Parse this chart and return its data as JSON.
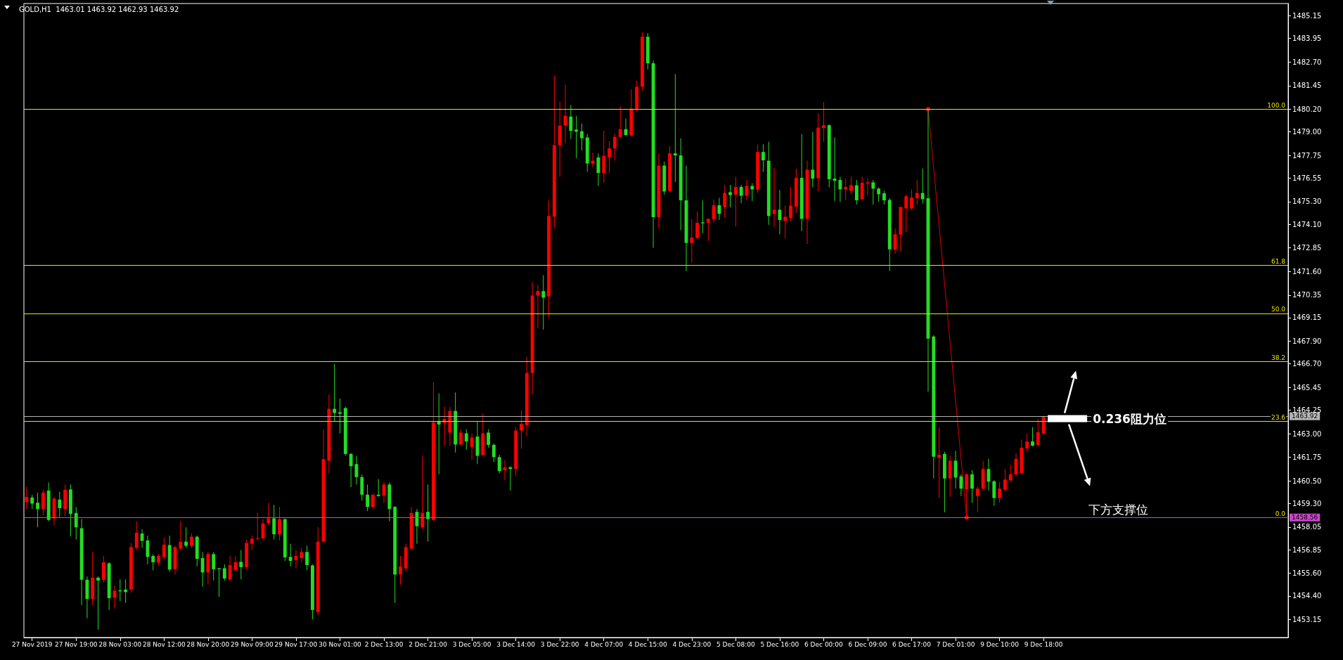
{
  "chart_data": {
    "type": "candlestick",
    "title": "GOLD,H1  1463.01 1463.92 1462.93 1463.92",
    "categories": [
      null,
      "27 Nov 2019",
      null,
      null,
      null,
      null,
      null,
      null,
      null,
      "27 Nov 19:00",
      null,
      null,
      null,
      null,
      null,
      null,
      null,
      "28 Nov 03:00",
      null,
      null,
      null,
      null,
      null,
      null,
      null,
      "28 Nov 12:00",
      null,
      null,
      null,
      null,
      null,
      null,
      null,
      "28 Nov 20:00",
      null,
      null,
      null,
      null,
      null,
      null,
      null,
      "29 Nov 09:00",
      null,
      null,
      null,
      null,
      null,
      null,
      null,
      "29 Nov 17:00",
      null,
      null,
      null,
      null,
      null,
      null,
      null,
      "30 Nov 01:00",
      null,
      null,
      null,
      null,
      null,
      null,
      null,
      "2 Dec 13:00",
      null,
      null,
      null,
      null,
      null,
      null,
      null,
      "2 Dec 21:00",
      null,
      null,
      null,
      null,
      null,
      null,
      null,
      "3 Dec 05:00",
      null,
      null,
      null,
      null,
      null,
      null,
      null,
      "3 Dec 14:00",
      null,
      null,
      null,
      null,
      null,
      null,
      null,
      "3 Dec 22:00",
      null,
      null,
      null,
      null,
      null,
      null,
      null,
      "4 Dec 07:00",
      null,
      null,
      null,
      null,
      null,
      null,
      null,
      "4 Dec 15:00",
      null,
      null,
      null,
      null,
      null,
      null,
      null,
      "4 Dec 23:00",
      null,
      null,
      null,
      null,
      null,
      null,
      null,
      "5 Dec 08:00",
      null,
      null,
      null,
      null,
      null,
      null,
      null,
      "5 Dec 16:00",
      null,
      null,
      null,
      null,
      null,
      null,
      null,
      "6 Dec 00:00",
      null,
      null,
      null,
      null,
      null,
      null,
      null,
      "6 Dec 09:00",
      null,
      null,
      null,
      null,
      null,
      null,
      null,
      "6 Dec 17:00",
      null,
      null,
      null,
      null,
      null,
      null,
      null,
      "7 Dec 01:00",
      null,
      null,
      null,
      null,
      null,
      null,
      null,
      "9 Dec 10:00",
      null,
      null,
      null,
      null,
      null,
      null,
      null,
      "9 Dec 18:00",
      null,
      null,
      null,
      null,
      null,
      null,
      null,
      null,
      null,
      null,
      null,
      null,
      null,
      null,
      null,
      null,
      null,
      null,
      null,
      null,
      null,
      null,
      null,
      null,
      null,
      null,
      null,
      null,
      null,
      null,
      null,
      null,
      null,
      null,
      null,
      null,
      null,
      null,
      null,
      null,
      null,
      null,
      null,
      null
    ],
    "ohlc": [
      [
        1459.38,
        1460.2,
        1459.01,
        1459.66
      ],
      [
        1459.62,
        1459.77,
        1459.01,
        1459.3
      ],
      [
        1459.34,
        1459.88,
        1458.04,
        1459.01
      ],
      [
        1459.01,
        1460.05,
        1458.69,
        1459.88
      ],
      [
        1459.99,
        1460.42,
        1458.36,
        1458.43
      ],
      [
        1458.51,
        1459.66,
        1458.15,
        1459.56
      ],
      [
        1459.51,
        1459.92,
        1458.58,
        1459.05
      ],
      [
        1459.01,
        1460.31,
        1458.64,
        1460.03
      ],
      [
        1460.05,
        1460.31,
        1457.56,
        1458.75
      ],
      [
        1458.8,
        1459.12,
        1457.39,
        1458.04
      ],
      [
        1457.99,
        1458.47,
        1453.92,
        1455.26
      ],
      [
        1455.26,
        1455.43,
        1453.22,
        1454.24
      ],
      [
        1454.24,
        1456.73,
        1453.92,
        1455.37
      ],
      [
        1455.37,
        1455.43,
        1452.62,
        1455.22
      ],
      [
        1455.26,
        1456.52,
        1455.11,
        1456.19
      ],
      [
        1456.13,
        1456.19,
        1453.66,
        1454.29
      ],
      [
        1454.31,
        1454.96,
        1453.74,
        1454.68
      ],
      [
        1454.7,
        1455.28,
        1454.13,
        1454.65
      ],
      [
        1454.74,
        1455.28,
        1454.03,
        1454.61
      ],
      [
        1454.74,
        1457.21,
        1454.57,
        1456.99
      ],
      [
        1456.95,
        1458.36,
        1456.84,
        1457.75
      ],
      [
        1457.71,
        1457.93,
        1456.95,
        1457.32
      ],
      [
        1457.34,
        1457.6,
        1456.08,
        1456.47
      ],
      [
        1456.52,
        1456.62,
        1455.76,
        1456.19
      ],
      [
        1456.17,
        1456.62,
        1456.04,
        1456.52
      ],
      [
        1456.47,
        1457.49,
        1456.34,
        1457.12
      ],
      [
        1457.1,
        1457.6,
        1455.69,
        1455.8
      ],
      [
        1455.82,
        1457.06,
        1455.54,
        1456.99
      ],
      [
        1456.91,
        1458.36,
        1456.84,
        1457.28
      ],
      [
        1457.28,
        1458.04,
        1456.95,
        1457.06
      ],
      [
        1457.06,
        1457.71,
        1456.95,
        1457.54
      ],
      [
        1457.54,
        1457.6,
        1455.97,
        1456.37
      ],
      [
        1456.41,
        1456.73,
        1454.89,
        1455.65
      ],
      [
        1455.65,
        1456.73,
        1455.0,
        1456.62
      ],
      [
        1456.62,
        1456.73,
        1455.22,
        1455.82
      ],
      [
        1455.87,
        1455.87,
        1454.35,
        1455.82
      ],
      [
        1455.87,
        1456.08,
        1455.22,
        1455.33
      ],
      [
        1455.28,
        1456.52,
        1455.22,
        1456.04
      ],
      [
        1455.76,
        1456.52,
        1455.69,
        1456.19
      ],
      [
        1456.21,
        1456.84,
        1455.28,
        1455.93
      ],
      [
        1455.93,
        1457.39,
        1455.82,
        1457.21
      ],
      [
        1457.17,
        1457.6,
        1456.84,
        1457.43
      ],
      [
        1457.43,
        1458.8,
        1457.39,
        1457.47
      ],
      [
        1457.45,
        1458.47,
        1457.43,
        1458.25
      ],
      [
        1458.25,
        1459.34,
        1458.15,
        1458.51
      ],
      [
        1458.51,
        1459.23,
        1457.39,
        1457.67
      ],
      [
        1457.67,
        1459.12,
        1457.34,
        1458.47
      ],
      [
        1458.47,
        1458.51,
        1456.26,
        1456.45
      ],
      [
        1456.47,
        1457.17,
        1455.97,
        1456.26
      ],
      [
        1456.3,
        1456.84,
        1455.87,
        1456.52
      ],
      [
        1456.41,
        1456.95,
        1456.19,
        1456.73
      ],
      [
        1456.73,
        1457.06,
        1455.76,
        1456.04
      ],
      [
        1456.02,
        1456.08,
        1453.16,
        1453.66
      ],
      [
        1453.55,
        1458.04,
        1453.38,
        1457.28
      ],
      [
        1457.28,
        1463.23,
        1457.21,
        1461.65
      ],
      [
        1461.57,
        1465.08,
        1460.91,
        1464.32
      ],
      [
        1464.32,
        1466.7,
        1463.67,
        1464.1
      ],
      [
        1464.14,
        1464.86,
        1463.02,
        1464.06
      ],
      [
        1464.36,
        1464.43,
        1461.83,
        1461.93
      ],
      [
        1461.93,
        1461.98,
        1460.16,
        1461.28
      ],
      [
        1461.39,
        1461.83,
        1460.31,
        1460.7
      ],
      [
        1460.7,
        1460.85,
        1459.45,
        1459.77
      ],
      [
        1459.77,
        1460.31,
        1458.9,
        1459.12
      ],
      [
        1459.12,
        1459.81,
        1459.01,
        1459.77
      ],
      [
        1459.77,
        1460.59,
        1459.66,
        1459.7
      ],
      [
        1459.72,
        1460.46,
        1459.34,
        1460.31
      ],
      [
        1460.31,
        1460.42,
        1458.36,
        1459.01
      ],
      [
        1459.12,
        1459.16,
        1454.03,
        1455.54
      ],
      [
        1455.54,
        1456.52,
        1455.0,
        1455.97
      ],
      [
        1455.87,
        1457.17,
        1455.69,
        1456.99
      ],
      [
        1456.91,
        1459.12,
        1456.84,
        1458.8
      ],
      [
        1458.86,
        1459.01,
        1457.17,
        1458.1
      ],
      [
        1458.04,
        1461.83,
        1457.93,
        1458.8
      ],
      [
        1458.86,
        1460.31,
        1457.28,
        1458.47
      ],
      [
        1458.43,
        1465.73,
        1458.36,
        1463.6
      ],
      [
        1463.67,
        1465.14,
        1460.85,
        1463.49
      ],
      [
        1463.56,
        1464.43,
        1462.37,
        1463.78
      ],
      [
        1463.06,
        1464.43,
        1462.37,
        1464.21
      ],
      [
        1464.21,
        1465.19,
        1462.0,
        1462.43
      ],
      [
        1462.43,
        1463.23,
        1462.37,
        1463.06
      ],
      [
        1463.02,
        1463.23,
        1462.15,
        1462.59
      ],
      [
        1462.3,
        1463.02,
        1461.61,
        1462.8
      ],
      [
        1462.85,
        1463.67,
        1461.39,
        1461.83
      ],
      [
        1461.87,
        1464.06,
        1461.83,
        1463.02
      ],
      [
        1463.06,
        1463.23,
        1462.26,
        1462.41
      ],
      [
        1462.41,
        1462.48,
        1461.5,
        1461.76
      ],
      [
        1461.76,
        1461.89,
        1460.91,
        1461.02
      ],
      [
        1461.07,
        1461.61,
        1460.53,
        1461.22
      ],
      [
        1461.22,
        1461.28,
        1459.99,
        1461.13
      ],
      [
        1461.13,
        1463.34,
        1460.79,
        1463.17
      ],
      [
        1463.17,
        1464.25,
        1462.2,
        1463.52
      ],
      [
        1463.45,
        1467.07,
        1462.87,
        1466.22
      ],
      [
        1466.22,
        1471.04,
        1465.08,
        1470.32
      ],
      [
        1470.32,
        1470.88,
        1468.59,
        1470.56
      ],
      [
        1470.56,
        1471.4,
        1468.52,
        1470.21
      ],
      [
        1470.28,
        1475.37,
        1469.13,
        1474.54
      ],
      [
        1474.5,
        1481.98,
        1473.89,
        1478.29
      ],
      [
        1478.29,
        1480.61,
        1476.62,
        1479.33
      ],
      [
        1479.33,
        1481.5,
        1478.4,
        1479.85
      ],
      [
        1479.81,
        1480.42,
        1478.62,
        1479.05
      ],
      [
        1479.12,
        1479.85,
        1477.6,
        1479.01
      ],
      [
        1479.03,
        1479.44,
        1478.01,
        1478.66
      ],
      [
        1478.7,
        1478.88,
        1476.88,
        1477.32
      ],
      [
        1477.3,
        1477.9,
        1477.1,
        1477.47
      ],
      [
        1477.64,
        1477.86,
        1476.13,
        1476.82
      ],
      [
        1476.82,
        1479.05,
        1476.3,
        1477.73
      ],
      [
        1477.64,
        1478.51,
        1476.82,
        1478.12
      ],
      [
        1478.12,
        1478.9,
        1477.47,
        1478.73
      ],
      [
        1478.73,
        1480.35,
        1478.66,
        1479.14
      ],
      [
        1479.14,
        1479.7,
        1478.79,
        1478.83
      ],
      [
        1478.81,
        1481.26,
        1478.73,
        1480.22
      ],
      [
        1480.22,
        1481.7,
        1480.09,
        1481.39
      ],
      [
        1481.39,
        1484.27,
        1481.17,
        1484.04
      ],
      [
        1484.04,
        1484.23,
        1482.3,
        1482.63
      ],
      [
        1482.63,
        1482.78,
        1472.85,
        1474.48
      ],
      [
        1474.48,
        1477.84,
        1473.89,
        1477.21
      ],
      [
        1477.21,
        1477.43,
        1475.67,
        1475.84
      ],
      [
        1475.87,
        1478.23,
        1475.8,
        1477.86
      ],
      [
        1477.86,
        1482.06,
        1476.34,
        1477.75
      ],
      [
        1477.75,
        1478.66,
        1473.79,
        1475.37
      ],
      [
        1475.37,
        1477.21,
        1471.62,
        1473.11
      ],
      [
        1473.11,
        1474.39,
        1472.07,
        1473.4
      ],
      [
        1473.37,
        1474.78,
        1473.31,
        1474.18
      ],
      [
        1474.2,
        1475.37,
        1473.63,
        1474.15
      ],
      [
        1474.18,
        1474.39,
        1473.2,
        1474.39
      ],
      [
        1474.37,
        1475.41,
        1474.18,
        1475.11
      ],
      [
        1475.11,
        1475.5,
        1474.33,
        1474.65
      ],
      [
        1475.0,
        1476.19,
        1474.46,
        1475.76
      ],
      [
        1475.8,
        1476.19,
        1475.0,
        1475.65
      ],
      [
        1475.67,
        1476.62,
        1473.98,
        1476.08
      ],
      [
        1476.08,
        1476.19,
        1475.22,
        1475.61
      ],
      [
        1475.61,
        1476.45,
        1475.41,
        1476.13
      ],
      [
        1476.13,
        1476.28,
        1475.33,
        1475.95
      ],
      [
        1475.95,
        1478.32,
        1475.76,
        1477.93
      ],
      [
        1477.93,
        1478.34,
        1476.88,
        1477.49
      ],
      [
        1477.47,
        1478.47,
        1474.07,
        1474.54
      ],
      [
        1474.65,
        1477.08,
        1473.96,
        1474.87
      ],
      [
        1474.87,
        1475.91,
        1473.57,
        1474.33
      ],
      [
        1474.28,
        1475.09,
        1473.35,
        1474.5
      ],
      [
        1474.44,
        1476.08,
        1474.28,
        1475.09
      ],
      [
        1475.04,
        1477.04,
        1474.67,
        1476.56
      ],
      [
        1476.56,
        1478.88,
        1473.74,
        1474.39
      ],
      [
        1474.39,
        1477.47,
        1473.05,
        1476.99
      ],
      [
        1476.99,
        1478.99,
        1476.06,
        1476.52
      ],
      [
        1476.54,
        1479.98,
        1475.84,
        1479.22
      ],
      [
        1479.2,
        1480.57,
        1478.47,
        1479.35
      ],
      [
        1479.35,
        1479.4,
        1476.06,
        1476.49
      ],
      [
        1476.52,
        1478.71,
        1475.33,
        1476.41
      ],
      [
        1476.45,
        1476.62,
        1475.28,
        1475.95
      ],
      [
        1475.95,
        1476.52,
        1475.37,
        1476.08
      ],
      [
        1475.87,
        1476.62,
        1475.69,
        1476.17
      ],
      [
        1476.17,
        1476.45,
        1475.15,
        1475.37
      ],
      [
        1475.43,
        1476.62,
        1475.37,
        1476.3
      ],
      [
        1476.26,
        1476.52,
        1475.63,
        1476.32
      ],
      [
        1476.32,
        1476.45,
        1475.15,
        1475.99
      ],
      [
        1475.99,
        1476.06,
        1475.3,
        1475.69
      ],
      [
        1475.74,
        1475.87,
        1475.15,
        1475.37
      ],
      [
        1475.39,
        1475.48,
        1471.62,
        1472.77
      ],
      [
        1472.75,
        1473.89,
        1472.55,
        1473.57
      ],
      [
        1473.55,
        1475.04,
        1472.66,
        1475.02
      ],
      [
        1474.94,
        1475.69,
        1473.68,
        1475.58
      ],
      [
        1474.94,
        1475.95,
        1474.83,
        1475.52
      ],
      [
        1475.48,
        1476.45,
        1475.15,
        1475.76
      ],
      [
        1475.76,
        1477.06,
        1475.2,
        1475.43
      ],
      [
        1475.48,
        1480.2,
        1465.23,
        1468.04
      ],
      [
        1468.15,
        1468.22,
        1460.63,
        1461.78
      ],
      [
        1461.72,
        1463.34,
        1459.59,
        1461.89
      ],
      [
        1461.93,
        1462.04,
        1458.83,
        1460.63
      ],
      [
        1460.63,
        1461.83,
        1459.66,
        1461.57
      ],
      [
        1461.57,
        1462.09,
        1460.09,
        1460.68
      ],
      [
        1460.74,
        1460.85,
        1459.7,
        1460.09
      ],
      [
        1460.05,
        1460.89,
        1458.56,
        1460.85
      ],
      [
        1460.85,
        1461.07,
        1459.34,
        1460.09
      ],
      [
        1459.7,
        1460.2,
        1458.83,
        1460.09
      ],
      [
        1460.09,
        1461.54,
        1459.99,
        1461.13
      ],
      [
        1461.13,
        1461.67,
        1459.99,
        1460.46
      ],
      [
        1460.48,
        1460.53,
        1459.19,
        1459.59
      ],
      [
        1459.59,
        1460.42,
        1459.34,
        1460.09
      ],
      [
        1460.03,
        1461.13,
        1459.94,
        1460.57
      ],
      [
        1460.53,
        1461.35,
        1460.46,
        1460.85
      ],
      [
        1460.85,
        1461.98,
        1460.74,
        1461.67
      ],
      [
        1460.91,
        1462.69,
        1460.85,
        1462.26
      ],
      [
        1462.22,
        1463.02,
        1462.04,
        1462.59
      ],
      [
        1462.59,
        1463.34,
        1462.33,
        1462.37
      ],
      [
        1462.41,
        1463.78,
        1462.33,
        1463.08
      ],
      [
        1463.01,
        1463.92,
        1462.93,
        1463.92
      ],
      null,
      null,
      null,
      null,
      null,
      null,
      null,
      null,
      null,
      null,
      null,
      null,
      null,
      null,
      null,
      null,
      null,
      null,
      null,
      null,
      null,
      null,
      null,
      null,
      null,
      null,
      null,
      null,
      null,
      null,
      null,
      null,
      null,
      null,
      null,
      null,
      null,
      null,
      null,
      null,
      null,
      null,
      null,
      null
    ],
    "colors": [
      "#ff0000",
      "#22dd22",
      "#22dd22",
      "#ff0000",
      "#22dd22",
      "#ff0000",
      "#22dd22",
      "#ff0000",
      "#22dd22",
      "#22dd22",
      "#22dd22",
      "#22dd22",
      "#ff0000",
      "#22dd22",
      "#ff0000",
      "#22dd22",
      "#ff0000",
      "#22dd22",
      "#22dd22",
      "#ff0000",
      "#ff0000",
      "#22dd22",
      "#22dd22",
      "#22dd22",
      "#ff0000",
      "#ff0000",
      "#22dd22",
      "#ff0000",
      "#ff0000",
      "#22dd22",
      "#ff0000",
      "#22dd22",
      "#22dd22",
      "#ff0000",
      "#22dd22",
      "#22dd22",
      "#22dd22",
      "#ff0000",
      "#ff0000",
      "#22dd22",
      "#ff0000",
      "#ff0000",
      "#ff0000",
      "#ff0000",
      "#ff0000",
      "#22dd22",
      "#ff0000",
      "#22dd22",
      "#22dd22",
      "#ff0000",
      "#ff0000",
      "#22dd22",
      "#22dd22",
      "#ff0000",
      "#ff0000",
      "#ff0000",
      "#22dd22",
      "#22dd22",
      "#22dd22",
      "#22dd22",
      "#22dd22",
      "#22dd22",
      "#22dd22",
      "#ff0000",
      "#22dd22",
      "#ff0000",
      "#22dd22",
      "#22dd22",
      "#ff0000",
      "#ff0000",
      "#ff0000",
      "#22dd22",
      "#ff0000",
      "#22dd22",
      "#ff0000",
      "#22dd22",
      "#ff0000",
      "#ff0000",
      "#22dd22",
      "#ff0000",
      "#22dd22",
      "#ff0000",
      "#22dd22",
      "#ff0000",
      "#22dd22",
      "#22dd22",
      "#22dd22",
      "#ff0000",
      "#22dd22",
      "#ff0000",
      "#ff0000",
      "#ff0000",
      "#ff0000",
      "#ff0000",
      "#22dd22",
      "#ff0000",
      "#ff0000",
      "#ff0000",
      "#ff0000",
      "#22dd22",
      "#22dd22",
      "#22dd22",
      "#22dd22",
      "#ff0000",
      "#22dd22",
      "#ff0000",
      "#ff0000",
      "#ff0000",
      "#ff0000",
      "#22dd22",
      "#ff0000",
      "#ff0000",
      "#ff0000",
      "#22dd22",
      "#22dd22",
      "#ff0000",
      "#22dd22",
      "#ff0000",
      "#22dd22",
      "#22dd22",
      "#22dd22",
      "#ff0000",
      "#ff0000",
      "#22dd22",
      "#ff0000",
      "#ff0000",
      "#22dd22",
      "#ff0000",
      "#22dd22",
      "#ff0000",
      "#22dd22",
      "#ff0000",
      "#22dd22",
      "#ff0000",
      "#22dd22",
      "#22dd22",
      "#ff0000",
      "#22dd22",
      "#ff0000",
      "#ff0000",
      "#ff0000",
      "#22dd22",
      "#ff0000",
      "#22dd22",
      "#ff0000",
      "#ff0000",
      "#22dd22",
      "#22dd22",
      "#22dd22",
      "#ff0000",
      "#ff0000",
      "#22dd22",
      "#ff0000",
      "#ff0000",
      "#22dd22",
      "#22dd22",
      "#22dd22",
      "#22dd22",
      "#ff0000",
      "#ff0000",
      "#ff0000",
      "#ff0000",
      "#ff0000",
      "#22dd22",
      "#22dd22",
      "#22dd22",
      "#ff0000",
      "#22dd22",
      "#ff0000",
      "#22dd22",
      "#22dd22",
      "#ff0000",
      "#22dd22",
      "#ff0000",
      "#ff0000",
      "#22dd22",
      "#22dd22",
      "#ff0000",
      "#ff0000",
      "#ff0000",
      "#ff0000",
      "#ff0000",
      "#ff0000",
      "#22dd22",
      "#ff0000",
      "#ff0000",
      null,
      null,
      null,
      null,
      null,
      null,
      null,
      null,
      null,
      null,
      null,
      null,
      null,
      null,
      null,
      null,
      null,
      null,
      null,
      null,
      null,
      null,
      null,
      null,
      null,
      null,
      null,
      null,
      null,
      null,
      null,
      null,
      null,
      null,
      null,
      null,
      null,
      null,
      null,
      null,
      null,
      null,
      null,
      null
    ],
    "series": [
      {
        "type": "line",
        "color": "#ff0000",
        "line_style": "dotted",
        "marker": "circle",
        "values": [
          null,
          null,
          null,
          null,
          null,
          null,
          null,
          null,
          null,
          null,
          null,
          null,
          null,
          null,
          null,
          null,
          null,
          null,
          null,
          null,
          null,
          null,
          null,
          null,
          null,
          null,
          null,
          null,
          null,
          null,
          null,
          null,
          null,
          null,
          null,
          null,
          null,
          null,
          null,
          null,
          null,
          null,
          null,
          null,
          null,
          null,
          null,
          null,
          null,
          null,
          null,
          null,
          null,
          null,
          null,
          null,
          null,
          null,
          null,
          null,
          null,
          null,
          null,
          null,
          null,
          null,
          null,
          null,
          null,
          null,
          null,
          null,
          null,
          null,
          null,
          null,
          null,
          null,
          null,
          null,
          null,
          null,
          null,
          null,
          null,
          null,
          null,
          null,
          null,
          null,
          null,
          null,
          null,
          null,
          null,
          null,
          null,
          null,
          null,
          null,
          null,
          null,
          null,
          null,
          null,
          null,
          null,
          null,
          null,
          null,
          null,
          null,
          null,
          null,
          null,
          null,
          null,
          null,
          null,
          null,
          null,
          null,
          null,
          null,
          null,
          null,
          null,
          null,
          null,
          null,
          null,
          null,
          null,
          null,
          null,
          null,
          null,
          null,
          null,
          null,
          null,
          null,
          null,
          null,
          null,
          null,
          null,
          null,
          null,
          null,
          null,
          null,
          null,
          null,
          null,
          null,
          null,
          null,
          null,
          null,
          null,
          null,
          null,
          null,
          1480.2,
          null,
          null,
          null,
          null,
          null,
          null,
          1458.56,
          null,
          null,
          null,
          null,
          null,
          null,
          null,
          null,
          null,
          null,
          null,
          null,
          null,
          null,
          null,
          null,
          null,
          null,
          null,
          null,
          null,
          null,
          null,
          null,
          null,
          null,
          null,
          null,
          null,
          null,
          null,
          null,
          null,
          null,
          null,
          null,
          null,
          null,
          null,
          null,
          null,
          null,
          null,
          null,
          null,
          null,
          null,
          null,
          null,
          null,
          null,
          null,
          null,
          null,
          null,
          null,
          null,
          null
        ]
      }
    ],
    "ylim": [
      1452.2,
      1485.8
    ],
    "yticks": [
      1485.15,
      1483.95,
      {
        "value": 1482.7,
        "label": "1482.70"
      },
      1481.45,
      {
        "value": 1480.2,
        "label": "1480.20"
      },
      {
        "value": 1479,
        "label": "1479.00"
      },
      1477.75,
      1476.55,
      {
        "value": 1475.3,
        "label": "1475.30"
      },
      {
        "value": 1474.1,
        "label": "1474.10"
      },
      1472.85,
      {
        "value": 1471.6,
        "label": "1471.60"
      },
      1470.35,
      1469.15,
      {
        "value": 1467.9,
        "label": "1467.90"
      },
      {
        "value": 1466.7,
        "label": "1466.70"
      },
      1465.45,
      1464.25,
      {
        "value": 1463,
        "label": "1463.00"
      },
      1461.75,
      {
        "value": 1460.5,
        "label": "1460.50"
      },
      {
        "value": 1459.3,
        "label": "1459.30"
      },
      1458.05,
      1456.85,
      {
        "value": 1455.6,
        "label": "1455.60"
      },
      {
        "value": 1454.4,
        "label": "1454.40"
      },
      1453.15
    ],
    "ref_lines": [
      {
        "axis": "y",
        "value": 1480.2,
        "color": "#e6e600"
      },
      {
        "axis": "y",
        "value": 1471.93,
        "color": "#e6e600"
      },
      {
        "axis": "y",
        "value": 1469.38,
        "color": "#e6e600"
      },
      {
        "axis": "y",
        "value": 1466.83,
        "color": "#e6e600"
      },
      {
        "axis": "y",
        "value": 1463.67,
        "color": "#e6e600"
      },
      {
        "axis": "y",
        "value": 1463.92,
        "label": "1463.92",
        "color": "#b4b4b4"
      },
      {
        "axis": "y",
        "value": 1458.56,
        "label": "1458.56",
        "color": "#cc44cc"
      }
    ],
    "annotations": [
      {
        "text": "0.236阻力位",
        "y": 1463.8
      },
      "下方支撑位",
      {
        "text": "100.0",
        "y": 1480.2
      },
      {
        "text": "61.8",
        "y": 1471.93
      },
      {
        "text": "50.0",
        "y": 1469.38
      },
      {
        "text": "38.2",
        "y": 1466.83
      },
      {
        "text": "23.6",
        "y": 1463.67
      },
      {
        "text": "0.0",
        "y": 1458.56
      }
    ]
  }
}
